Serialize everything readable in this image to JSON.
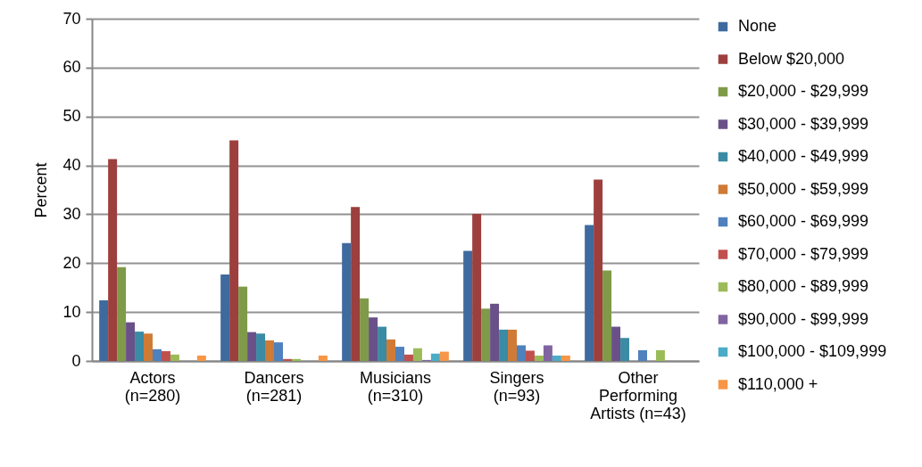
{
  "chart_data": {
    "type": "bar",
    "ylabel": "Percent",
    "categories": [
      "Actors (n=280)",
      "Dancers (n=281)",
      "Musicians (n=310)",
      "Singers (n=93)",
      "Other Performing Artists (n=43)"
    ],
    "ylim": [
      0,
      70
    ],
    "yticks": [
      0,
      10,
      20,
      30,
      40,
      50,
      60,
      70
    ],
    "grid": "y",
    "legend": "right",
    "series": [
      {
        "name": "None",
        "color": "#3f6a9e",
        "values": [
          12.4,
          17.7,
          24.1,
          22.5,
          27.8
        ]
      },
      {
        "name": "Below $20,000",
        "color": "#9c3f3d",
        "values": [
          41.3,
          45.1,
          31.5,
          30.1,
          37.1
        ]
      },
      {
        "name": "$20,000 - $29,999",
        "color": "#7f9a48",
        "values": [
          19.2,
          15.2,
          12.8,
          10.7,
          18.5
        ]
      },
      {
        "name": "$30,000 - $39,999",
        "color": "#6a5088",
        "values": [
          7.9,
          5.9,
          8.9,
          11.7,
          7.0
        ]
      },
      {
        "name": "$40,000 - $49,999",
        "color": "#3a8ba3",
        "values": [
          6.0,
          5.6,
          7.0,
          6.4,
          4.7
        ]
      },
      {
        "name": "$50,000 - $59,999",
        "color": "#cf7b36",
        "values": [
          5.6,
          4.2,
          4.4,
          6.4,
          0
        ]
      },
      {
        "name": "$60,000 - $69,999",
        "color": "#4f81bd",
        "values": [
          2.4,
          3.8,
          2.9,
          3.2,
          2.2
        ]
      },
      {
        "name": "$70,000 - $79,999",
        "color": "#c0504d",
        "values": [
          2.0,
          0.4,
          1.3,
          2.1,
          0
        ]
      },
      {
        "name": "$80,000 - $89,999",
        "color": "#9bbb59",
        "values": [
          1.3,
          0.4,
          2.6,
          1.1,
          2.2
        ]
      },
      {
        "name": "$90,000 - $99,999",
        "color": "#8064a2",
        "values": [
          0,
          0,
          0.2,
          3.2,
          0
        ]
      },
      {
        "name": "$100,000 - $109,999",
        "color": "#4bacc6",
        "values": [
          0,
          0,
          1.5,
          1.1,
          0
        ]
      },
      {
        "name": "$110,000 +",
        "color": "#f79646",
        "values": [
          1.1,
          1.1,
          1.9,
          1.1,
          0
        ]
      }
    ]
  }
}
